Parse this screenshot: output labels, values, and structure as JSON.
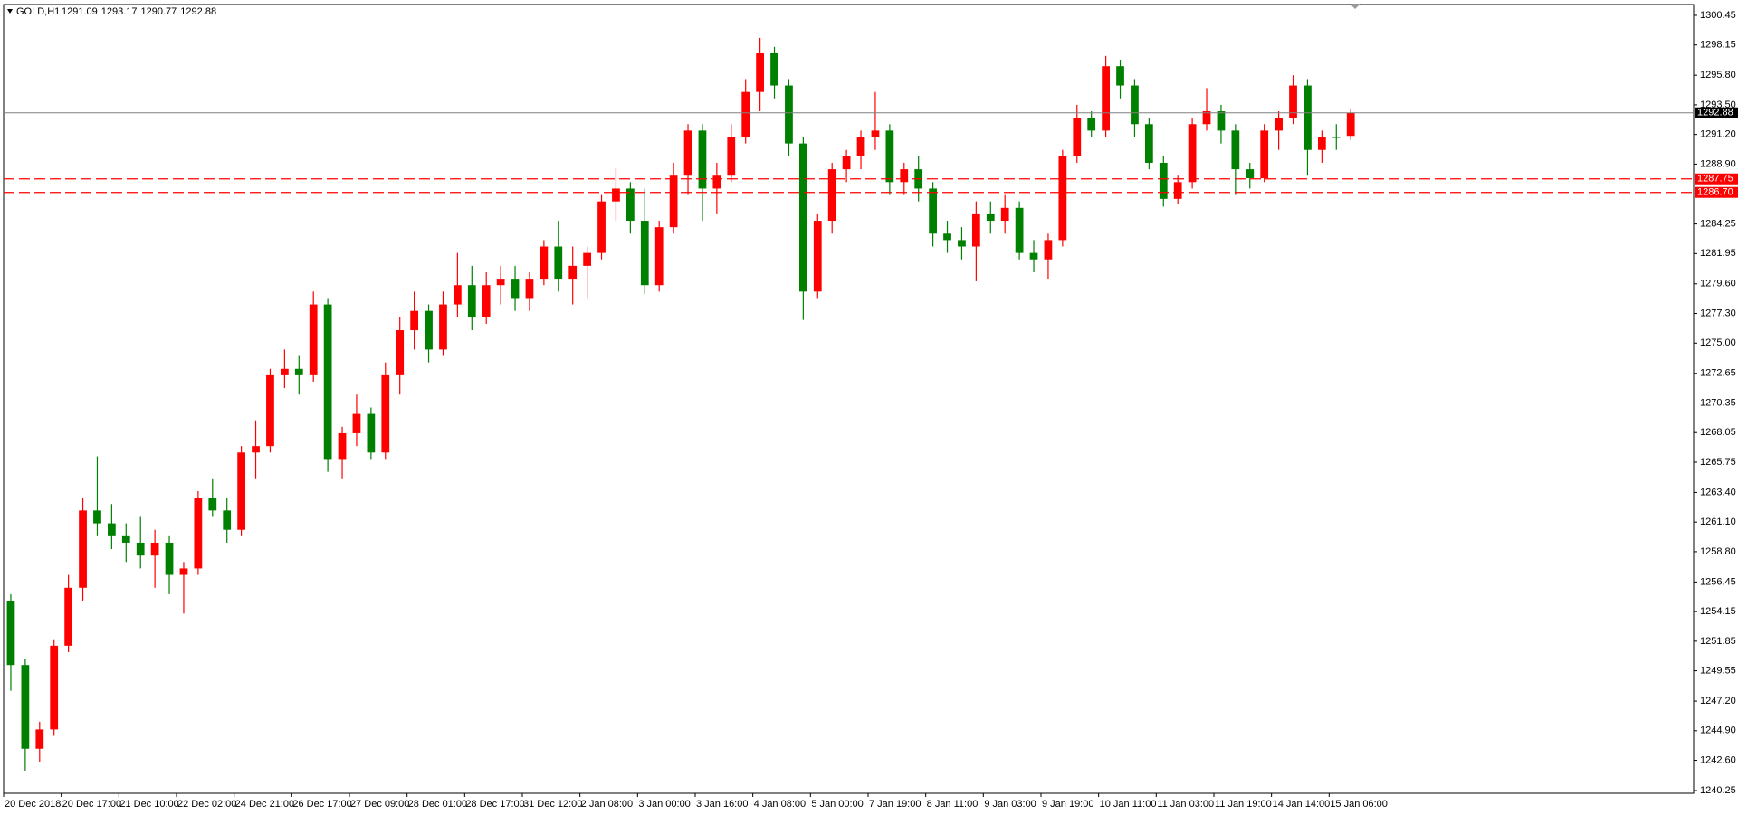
{
  "chart_data": {
    "type": "candlestick",
    "symbol": "GOLD,H1",
    "header_ohlc": [
      1291.09,
      1293.17,
      1290.77,
      1292.88
    ],
    "up_color": "#ff0000",
    "down_color": "#008000",
    "open": [
      1255,
      1250,
      1243.5,
      1245,
      1251.5,
      1256,
      1262,
      1261,
      1260,
      1259.5,
      1258.5,
      1259.5,
      1257,
      1257.5,
      1263,
      1262,
      1260.5,
      1266.5,
      1267,
      1272.5,
      1273,
      1272.5,
      1278,
      1266,
      1268,
      1269.5,
      1266.5,
      1272.5,
      1276,
      1277.5,
      1274.5,
      1278,
      1279.5,
      1277,
      1279.5,
      1280,
      1278.5,
      1280,
      1282.5,
      1280,
      1281,
      1282,
      1286,
      1287,
      1284.5,
      1279.5,
      1284,
      1288,
      1291.5,
      1287,
      1288,
      1291,
      1294.5,
      1297.5,
      1295,
      1290.5,
      1279,
      1284.5,
      1288.5,
      1289.5,
      1291,
      1291.5,
      1287.5,
      1288.5,
      1287,
      1283.5,
      1283,
      1282.5,
      1285,
      1284.5,
      1285.5,
      1282,
      1281.5,
      1283,
      1289.5,
      1292.5,
      1291.5,
      1296.5,
      1295,
      1292,
      1289,
      1286.2,
      1287.5,
      1292,
      1293,
      1291.5,
      1288.5,
      1287.8,
      1291.5,
      1292.5,
      1295,
      1290,
      1291,
      1291.09
    ],
    "high": [
      1255.5,
      1250.5,
      1245.6,
      1252,
      1257,
      1263,
      1266.2,
      1262.5,
      1261,
      1261.5,
      1260.5,
      1260,
      1258,
      1263.5,
      1264.5,
      1263,
      1267,
      1269,
      1273,
      1274.5,
      1274,
      1279,
      1278.5,
      1268.5,
      1271,
      1270,
      1273.5,
      1277,
      1279,
      1278,
      1279,
      1282,
      1281,
      1280.5,
      1281,
      1281,
      1280.5,
      1283,
      1284.5,
      1282.5,
      1282.5,
      1286.5,
      1288.6,
      1287.5,
      1287,
      1284.5,
      1289,
      1292,
      1292,
      1289,
      1292,
      1295.5,
      1298.7,
      1298,
      1295.5,
      1291,
      1285,
      1289,
      1290,
      1291.5,
      1294.5,
      1292,
      1289,
      1289.5,
      1287.5,
      1284.5,
      1284,
      1286,
      1286,
      1286.5,
      1286,
      1283,
      1283.5,
      1290,
      1293.5,
      1293,
      1297.3,
      1297,
      1295.5,
      1292.5,
      1289.5,
      1288,
      1292.5,
      1294.8,
      1293.5,
      1292,
      1289,
      1292,
      1293,
      1295.8,
      1295.5,
      1291.5,
      1292,
      1293.17
    ],
    "low": [
      1248,
      1241.8,
      1242.5,
      1244.5,
      1251,
      1255,
      1260,
      1259,
      1258,
      1257.5,
      1256,
      1255.5,
      1254,
      1257,
      1261.5,
      1259.5,
      1260,
      1264.5,
      1266.5,
      1271.5,
      1271,
      1272,
      1265,
      1264.5,
      1267,
      1266,
      1266,
      1271,
      1274.5,
      1273.5,
      1274,
      1277,
      1276,
      1276.5,
      1278,
      1277.5,
      1277.5,
      1279.5,
      1279,
      1278,
      1278.5,
      1281.5,
      1284.5,
      1283.5,
      1278.8,
      1279,
      1283.5,
      1286.5,
      1284.5,
      1285,
      1287.5,
      1290.5,
      1293,
      1294,
      1289.5,
      1276.8,
      1278.5,
      1283.5,
      1287.5,
      1288.5,
      1290,
      1286.5,
      1286.5,
      1286,
      1282.5,
      1282,
      1281.5,
      1279.8,
      1283.5,
      1283.5,
      1281.5,
      1280.5,
      1280,
      1282.5,
      1289,
      1291,
      1291,
      1294,
      1291,
      1288.5,
      1285.6,
      1285.8,
      1287,
      1291.5,
      1290.5,
      1286.5,
      1287,
      1287.5,
      1290,
      1292,
      1288,
      1289,
      1290,
      1290.77
    ],
    "close": [
      1250,
      1243.5,
      1245,
      1251.5,
      1256,
      1262,
      1261,
      1260,
      1259.5,
      1258.5,
      1259.5,
      1257,
      1257.5,
      1263,
      1262,
      1260.5,
      1266.5,
      1267,
      1272.5,
      1273,
      1272.5,
      1278,
      1266,
      1268,
      1269.5,
      1266.5,
      1272.5,
      1276,
      1277.5,
      1274.5,
      1278,
      1279.5,
      1277,
      1279.5,
      1280,
      1278.5,
      1280,
      1282.5,
      1280,
      1281,
      1282,
      1286,
      1287,
      1284.5,
      1279.5,
      1284,
      1288,
      1291.5,
      1287,
      1288,
      1291,
      1294.5,
      1297.5,
      1295,
      1290.5,
      1279,
      1284.5,
      1288.5,
      1289.5,
      1291,
      1291.5,
      1287.5,
      1288.5,
      1287,
      1283.5,
      1283,
      1282.5,
      1285,
      1284.5,
      1285.5,
      1282,
      1281.5,
      1283,
      1289.5,
      1292.5,
      1291.5,
      1296.5,
      1295,
      1292,
      1289,
      1286.2,
      1287.5,
      1292,
      1293,
      1291.5,
      1288.5,
      1287.8,
      1291.5,
      1292.5,
      1295,
      1290,
      1291,
      1291,
      1292.88
    ],
    "xlim": [
      0,
      117.3
    ],
    "xticks": [
      {
        "value": 0,
        "label": "20 Dec 2018"
      },
      {
        "value": 4,
        "label": "20 Dec 17:00"
      },
      {
        "value": 8,
        "label": "21 Dec 10:00"
      },
      {
        "value": 12,
        "label": "22 Dec 02:00"
      },
      {
        "value": 16,
        "label": "24 Dec 21:00"
      },
      {
        "value": 20,
        "label": "26 Dec 17:00"
      },
      {
        "value": 24,
        "label": "27 Dec 09:00"
      },
      {
        "value": 28,
        "label": "28 Dec 01:00"
      },
      {
        "value": 32,
        "label": "28 Dec 17:00"
      },
      {
        "value": 36,
        "label": "31 Dec 12:00"
      },
      {
        "value": 40,
        "label": "2 Jan 08:00"
      },
      {
        "value": 44,
        "label": "3 Jan 00:00"
      },
      {
        "value": 48,
        "label": "3 Jan 16:00"
      },
      {
        "value": 52,
        "label": "4 Jan 08:00"
      },
      {
        "value": 56,
        "label": "5 Jan 00:00"
      },
      {
        "value": 60,
        "label": "7 Jan 19:00"
      },
      {
        "value": 64,
        "label": "8 Jan 11:00"
      },
      {
        "value": 68,
        "label": "9 Jan 03:00"
      },
      {
        "value": 72,
        "label": "9 Jan 19:00"
      },
      {
        "value": 76,
        "label": "10 Jan 11:00"
      },
      {
        "value": 80,
        "label": "11 Jan 03:00"
      },
      {
        "value": 84,
        "label": "11 Jan 19:00"
      },
      {
        "value": 88,
        "label": "14 Jan 14:00"
      },
      {
        "value": 92,
        "label": "15 Jan 06:00"
      }
    ],
    "ylim": [
      1240.04,
      1301.29
    ],
    "yticks": [
      1300.45,
      1298.15,
      {
        "value": 1295.8,
        "label": "1295.80"
      },
      {
        "value": 1293.5,
        "label": "1293.50"
      },
      {
        "value": 1291.2,
        "label": "1291.20"
      },
      {
        "value": 1288.9,
        "label": "1288.90"
      },
      1284.25,
      1281.95,
      {
        "value": 1279.6,
        "label": "1279.60"
      },
      {
        "value": 1277.3,
        "label": "1277.30"
      },
      {
        "value": 1275,
        "label": "1275.00"
      },
      1272.65,
      1270.35,
      1268.05,
      1265.75,
      {
        "value": 1263.4,
        "label": "1263.40"
      },
      {
        "value": 1261.1,
        "label": "1261.10"
      },
      {
        "value": 1258.8,
        "label": "1258.80"
      },
      1256.45,
      1254.15,
      1251.85,
      1249.55,
      {
        "value": 1247.2,
        "label": "1247.20"
      },
      {
        "value": 1244.9,
        "label": "1244.90"
      },
      {
        "value": 1242.6,
        "label": "1242.60"
      },
      1240.25
    ],
    "last_price": 1292.88,
    "last_price_color": "#808080",
    "levels": [
      {
        "value": 1287.75,
        "color": "#ff0000"
      },
      {
        "value": {
          "value": 1286.7,
          "label": "1286.70"
        },
        "color": "#ff0000"
      }
    ]
  }
}
